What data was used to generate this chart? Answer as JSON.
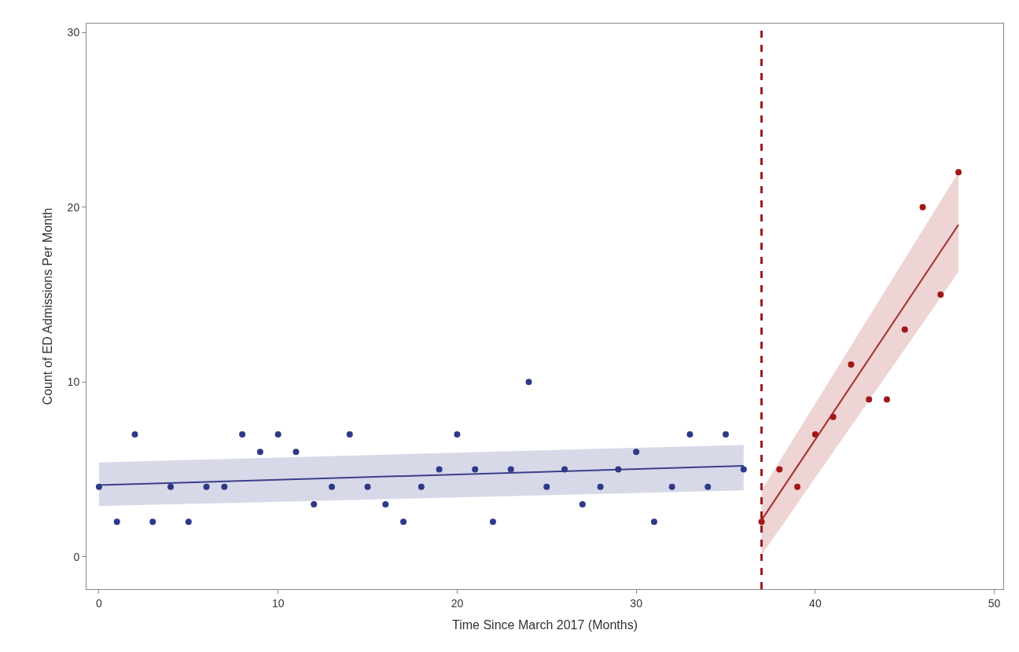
{
  "chart_data": {
    "type": "scatter",
    "xlabel": "Time Since March 2017 (Months)",
    "ylabel": "Count of ED Admissions Per Month",
    "series": [
      {
        "color": "#2e3a87",
        "marker": "circle",
        "x": [
          0,
          1,
          2,
          3,
          4,
          5,
          6,
          7,
          8,
          9,
          10,
          11,
          12,
          13,
          14,
          15,
          16,
          17,
          18,
          19,
          20,
          21,
          22,
          23,
          24,
          25,
          26,
          27,
          28,
          29,
          30,
          31,
          32,
          33,
          34,
          35,
          36
        ],
        "values": [
          4,
          2,
          7,
          2,
          4,
          2,
          4,
          4,
          7,
          6,
          7,
          6,
          3,
          4,
          7,
          4,
          3,
          2,
          4,
          5,
          7,
          5,
          2,
          5,
          10,
          4,
          5,
          3,
          4,
          5,
          6,
          2,
          4,
          7,
          4,
          7,
          5
        ]
      },
      {
        "color": "#a01818",
        "marker": "circle",
        "x": [
          37,
          38,
          39,
          40,
          41,
          42,
          43,
          44,
          45,
          46,
          47,
          48
        ],
        "values": [
          2,
          5,
          4,
          7,
          8,
          11,
          9,
          9,
          13,
          20,
          15,
          22
        ]
      },
      {
        "type": "line",
        "color": "#3a3f8a",
        "x": [
          0,
          36
        ],
        "values": [
          4.1,
          5.2
        ],
        "lower": [
          2.9,
          3.8
        ],
        "upper": [
          5.4,
          6.4
        ]
      },
      {
        "type": "line",
        "color": "#a82a2a",
        "x": [
          37,
          48
        ],
        "values": [
          2.1,
          19.0
        ],
        "lower": [
          0.1,
          16.3
        ],
        "upper": [
          3.8,
          22.0
        ]
      }
    ],
    "ref_lines": [
      {
        "axis": "x",
        "value": 37,
        "color": "#a01818",
        "line_style": "dashed"
      }
    ],
    "xlim": [
      -0.7,
      50.5
    ],
    "ylim": [
      -1.85,
      30.5
    ],
    "xticks": [
      0,
      10,
      20,
      30,
      40,
      50
    ],
    "yticks": [
      0,
      10,
      20,
      30
    ]
  }
}
